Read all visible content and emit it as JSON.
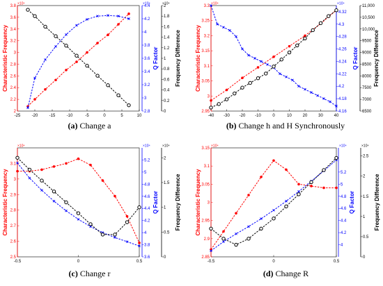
{
  "colors": {
    "red": "#ff0000",
    "blue": "#0000ff",
    "black": "#000000",
    "marker_fill": "#ffffff"
  },
  "chart_data": [
    {
      "id": "a",
      "type": "line",
      "caption_label": "(a)",
      "caption_text": "Change a",
      "xlim": [
        -25,
        10
      ],
      "xticks": [
        "-25",
        "-20",
        "-15",
        "-10",
        "-5",
        "0",
        "5",
        "10"
      ],
      "left_axis": {
        "label": "Characteristic Frequency",
        "multiplier": "×10⁴",
        "ylim": [
          2,
          3.8
        ],
        "ticks": [
          "2",
          "2.2",
          "2.4",
          "2.6",
          "2.8",
          "3",
          "3.2",
          "3.4",
          "3.6",
          "3.8"
        ]
      },
      "mid_axis": {
        "label": "Q Factor",
        "multiplier": "×10⁴",
        "ylim": [
          2.8,
          4.4
        ],
        "ticks": [
          "2.8",
          "3",
          "3.2",
          "3.4",
          "3.6",
          "3.8",
          "4",
          "4.2",
          "4.4"
        ]
      },
      "right_axis": {
        "label": "Frequency Difference",
        "multiplier": "×10⁴",
        "ylim": [
          0,
          2
        ],
        "ticks": [
          "0",
          "0.2",
          "0.4",
          "0.6",
          "0.8",
          "1",
          "1.2",
          "1.4",
          "1.6",
          "1.8",
          "2"
        ]
      },
      "series": [
        {
          "axis": "left",
          "color": "red",
          "marker": "dot",
          "x": [
            -22,
            -20,
            -17,
            -14,
            -11,
            -8,
            -5,
            -2,
            1,
            4,
            7
          ],
          "y": [
            2.08,
            2.2,
            2.37,
            2.53,
            2.7,
            2.84,
            3.0,
            3.16,
            3.3,
            3.48,
            3.66
          ]
        },
        {
          "axis": "mid",
          "color": "blue",
          "marker": "x",
          "x": [
            -22,
            -20,
            -17,
            -14,
            -11,
            -8,
            -5,
            -2,
            1,
            4,
            7
          ],
          "y": [
            2.85,
            3.3,
            3.58,
            3.78,
            3.96,
            4.1,
            4.19,
            4.24,
            4.25,
            4.24,
            4.2
          ]
        },
        {
          "axis": "right",
          "color": "black",
          "marker": "circle",
          "x": [
            -22,
            -20,
            -17,
            -14,
            -11,
            -8,
            -5,
            -2,
            1,
            4,
            7
          ],
          "y": [
            1.92,
            1.8,
            1.6,
            1.42,
            1.24,
            1.05,
            0.86,
            0.67,
            0.49,
            0.3,
            0.11
          ]
        }
      ]
    },
    {
      "id": "b",
      "type": "line",
      "caption_label": "(b)",
      "caption_text": "Change h and H Synchronously",
      "xlim": [
        -40,
        40
      ],
      "xticks": [
        "-40",
        "-30",
        "-20",
        "-10",
        "0",
        "10",
        "20",
        "30",
        "40"
      ],
      "left_axis": {
        "label": "Characteristic Frequency",
        "multiplier": "×10⁴",
        "ylim": [
          2.95,
          3.3
        ],
        "ticks": [
          "2.95",
          "3",
          "3.05",
          "3.1",
          "3.15",
          "3.2",
          "3.25",
          "3.3"
        ]
      },
      "mid_axis": {
        "label": "Q Factor",
        "multiplier": "×10⁴",
        "ylim": [
          4.16,
          4.33
        ],
        "ticks": [
          "4.16",
          "4.18",
          "4.2",
          "4.22",
          "4.24",
          "4.26",
          "4.28",
          "4.3",
          "4.32"
        ]
      },
      "right_axis": {
        "label": "Frequency Difference",
        "ylim": [
          6500,
          11000
        ],
        "ticks": [
          "6500",
          "7000",
          "7500",
          "8000",
          "8500",
          "9000",
          "9500",
          "10,000",
          "10,500",
          "11,000"
        ]
      },
      "series": [
        {
          "axis": "left",
          "color": "red",
          "marker": "dot",
          "x": [
            -40,
            -30,
            -20,
            -10,
            0,
            10,
            20,
            30,
            40
          ],
          "y": [
            2.985,
            3.02,
            3.06,
            3.095,
            3.13,
            3.165,
            3.2,
            3.24,
            3.285
          ]
        },
        {
          "axis": "mid",
          "color": "blue",
          "marker": "x",
          "x": [
            -40,
            -36,
            -32,
            -28,
            -24,
            -20,
            -16,
            -12,
            -8,
            -4,
            0,
            4,
            8,
            12,
            16,
            20,
            24,
            28,
            32,
            36,
            40
          ],
          "y": [
            4.33,
            4.3,
            4.295,
            4.29,
            4.28,
            4.26,
            4.25,
            4.245,
            4.24,
            4.235,
            4.23,
            4.22,
            4.215,
            4.21,
            4.2,
            4.195,
            4.19,
            4.185,
            4.18,
            4.175,
            4.168
          ]
        },
        {
          "axis": "right",
          "color": "black",
          "marker": "circle",
          "x": [
            -40,
            -35,
            -30,
            -25,
            -20,
            -15,
            -10,
            -5,
            0,
            5,
            10,
            15,
            20,
            25,
            30,
            35,
            40
          ],
          "y": [
            6650,
            6800,
            7000,
            7250,
            7500,
            7700,
            7900,
            8100,
            8400,
            8700,
            9000,
            9300,
            9600,
            9950,
            10250,
            10550,
            10800
          ]
        }
      ]
    },
    {
      "id": "c",
      "type": "line",
      "caption_label": "(c)",
      "caption_text": "Change r",
      "xlim": [
        -0.5,
        0.5
      ],
      "xticks": [
        "-0.5",
        "0",
        "0.5"
      ],
      "left_axis": {
        "label": "Characteristic Frequency",
        "multiplier": "×10⁴",
        "ylim": [
          2.5,
          3.2
        ],
        "ticks": [
          "2.5",
          "2.6",
          "2.7",
          "2.8",
          "2.9",
          "3",
          "3.1"
        ]
      },
      "mid_axis": {
        "label": "Q Factor",
        "multiplier": "×10⁴",
        "ylim": [
          3.6,
          5.4
        ],
        "ticks": [
          "3.6",
          "3.8",
          "4",
          "4.2",
          "4.4",
          "4.6",
          "4.8",
          "5",
          "5.2"
        ]
      },
      "right_axis": {
        "label": "Frequency Difference",
        "multiplier": "×10⁴",
        "ylim": [
          0,
          2.2
        ],
        "ticks": [
          "0",
          "0.5",
          "1",
          "1.5",
          "2"
        ]
      },
      "series": [
        {
          "axis": "left",
          "color": "red",
          "marker": "dot",
          "x": [
            -0.5,
            -0.4,
            -0.3,
            -0.2,
            -0.1,
            0,
            0.1,
            0.2,
            0.3,
            0.4,
            0.5
          ],
          "y": [
            3.05,
            3.05,
            3.06,
            3.08,
            3.1,
            3.13,
            3.09,
            2.99,
            2.89,
            2.76,
            2.59
          ]
        },
        {
          "axis": "mid",
          "color": "blue",
          "marker": "x",
          "x": [
            -0.5,
            -0.4,
            -0.3,
            -0.2,
            -0.1,
            0,
            0.1,
            0.2,
            0.3,
            0.4,
            0.5
          ],
          "y": [
            5.15,
            4.9,
            4.7,
            4.52,
            4.36,
            4.22,
            4.1,
            4.0,
            3.92,
            3.85,
            3.78
          ]
        },
        {
          "axis": "right",
          "color": "black",
          "marker": "circle",
          "x": [
            -0.5,
            -0.4,
            -0.3,
            -0.2,
            -0.1,
            0,
            0.1,
            0.2,
            0.3,
            0.4,
            0.5
          ],
          "y": [
            2.0,
            1.76,
            1.54,
            1.32,
            1.1,
            0.88,
            0.66,
            0.45,
            0.45,
            0.7,
            1.0
          ]
        }
      ]
    },
    {
      "id": "d",
      "type": "line",
      "caption_label": "(d)",
      "caption_text": "Change R",
      "xlim": [
        -0.5,
        0.5
      ],
      "xticks": [
        "-0.5",
        "0",
        "0.5"
      ],
      "left_axis": {
        "label": "Characteristic Frequency",
        "multiplier": "×10⁴",
        "ylim": [
          2.85,
          3.15
        ],
        "ticks": [
          "2.85",
          "2.9",
          "2.95",
          "3",
          "3.05",
          "3.1",
          "3.15"
        ]
      },
      "mid_axis": {
        "label": "Q Factor",
        "multiplier": "×10⁴",
        "ylim": [
          3.8,
          5.6
        ],
        "ticks": [
          "4",
          "4.2",
          "4.4",
          "4.6",
          "4.8",
          "5",
          "5.2"
        ]
      },
      "right_axis": {
        "label": "Frequency Difference",
        "multiplier": "×10⁴",
        "ylim": [
          0,
          2.7
        ],
        "ticks": [
          "0",
          "0.5",
          "1",
          "1.5",
          "2",
          "2.5"
        ]
      },
      "series": [
        {
          "axis": "left",
          "color": "red",
          "marker": "dot",
          "x": [
            -0.5,
            -0.4,
            -0.3,
            -0.2,
            -0.1,
            0,
            0.1,
            0.2,
            0.3,
            0.4,
            0.5
          ],
          "y": [
            2.87,
            2.92,
            2.97,
            3.02,
            3.07,
            3.115,
            3.09,
            3.05,
            3.045,
            3.04,
            3.04
          ]
        },
        {
          "axis": "mid",
          "color": "blue",
          "marker": "x",
          "x": [
            -0.5,
            -0.4,
            -0.3,
            -0.2,
            -0.1,
            0,
            0.1,
            0.2,
            0.3,
            0.4,
            0.5
          ],
          "y": [
            3.9,
            4.05,
            4.18,
            4.3,
            4.43,
            4.57,
            4.72,
            4.88,
            5.05,
            5.22,
            5.4
          ]
        },
        {
          "axis": "right",
          "color": "black",
          "marker": "circle",
          "x": [
            -0.5,
            -0.4,
            -0.3,
            -0.2,
            -0.1,
            0,
            0.1,
            0.2,
            0.3,
            0.4,
            0.5
          ],
          "y": [
            0.7,
            0.45,
            0.3,
            0.45,
            0.7,
            0.95,
            1.25,
            1.55,
            1.85,
            2.15,
            2.45
          ]
        }
      ]
    }
  ]
}
